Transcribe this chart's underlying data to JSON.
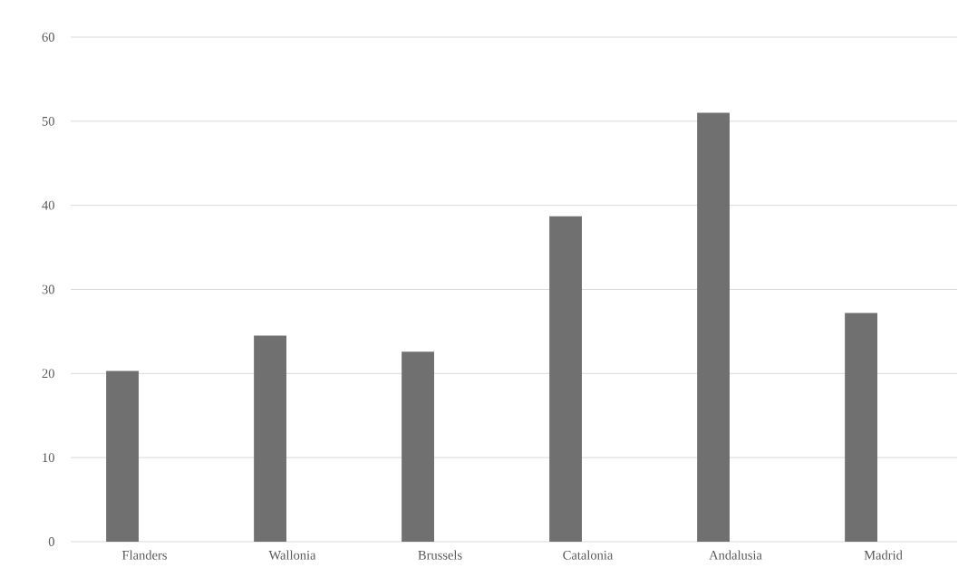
{
  "chart_data": {
    "type": "bar",
    "categories": [
      "Flanders",
      "Wallonia",
      "Brussels",
      "Catalonia",
      "Andalusia",
      "Madrid"
    ],
    "values": [
      20.3,
      24.5,
      22.6,
      38.7,
      51.0,
      27.2
    ],
    "color": "#707070",
    "ylim": [
      0,
      60
    ],
    "yticks": [
      0,
      10,
      20,
      30,
      40,
      50,
      60
    ],
    "grid": "y"
  }
}
